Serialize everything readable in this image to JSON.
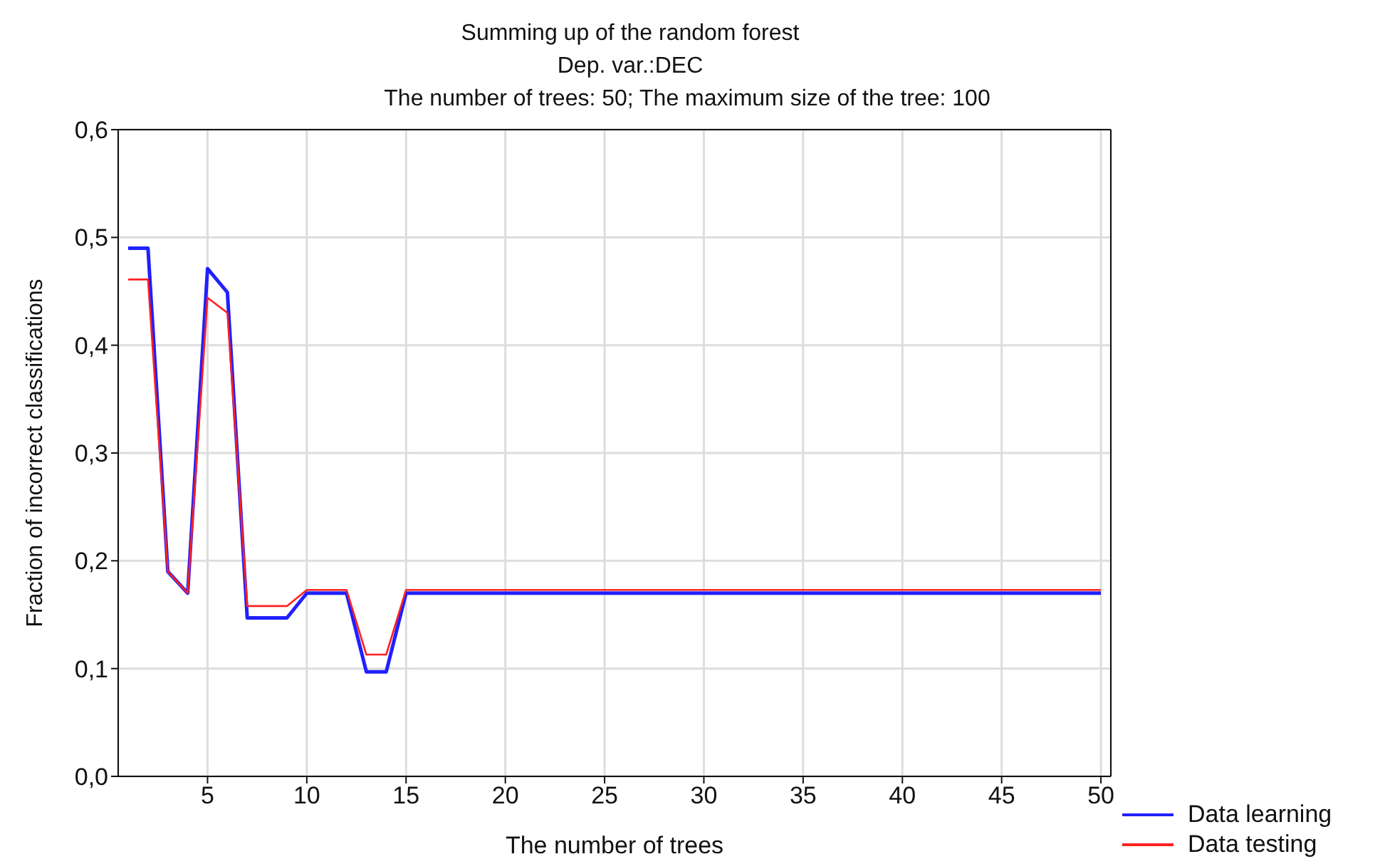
{
  "chart_data": {
    "type": "line",
    "title": "Summing up of the random forest",
    "subtitle": "Dep. var.:DEC\nThe number of trees: 50; The maximum size of the tree: 100",
    "xlabel": "The number of trees",
    "ylabel": "Fraction of incorrect classifications",
    "x": [
      1,
      2,
      3,
      4,
      5,
      6,
      7,
      8,
      9,
      10,
      11,
      12,
      13,
      14,
      15,
      16,
      17,
      18,
      19,
      20,
      21,
      22,
      23,
      24,
      25,
      26,
      27,
      28,
      29,
      30,
      31,
      32,
      33,
      34,
      35,
      36,
      37,
      38,
      39,
      40,
      41,
      42,
      43,
      44,
      45,
      46,
      47,
      48,
      49,
      50
    ],
    "series": [
      {
        "name": "Data learning",
        "color": "#2020ff",
        "values": [
          0.49,
          0.49,
          0.19,
          0.17,
          0.471,
          0.449,
          0.147,
          0.147,
          0.147,
          0.17,
          0.17,
          0.17,
          0.097,
          0.097,
          0.17,
          0.17,
          0.17,
          0.17,
          0.17,
          0.17,
          0.17,
          0.17,
          0.17,
          0.17,
          0.17,
          0.17,
          0.17,
          0.17,
          0.17,
          0.17,
          0.17,
          0.17,
          0.17,
          0.17,
          0.17,
          0.17,
          0.17,
          0.17,
          0.17,
          0.17,
          0.17,
          0.17,
          0.17,
          0.17,
          0.17,
          0.17,
          0.17,
          0.17,
          0.17,
          0.17
        ]
      },
      {
        "name": "Data testing",
        "color": "#ff2020",
        "values": [
          0.461,
          0.461,
          0.19,
          0.17,
          0.444,
          0.43,
          0.158,
          0.158,
          0.158,
          0.173,
          0.173,
          0.173,
          0.113,
          0.113,
          0.173,
          0.173,
          0.173,
          0.173,
          0.173,
          0.173,
          0.173,
          0.173,
          0.173,
          0.173,
          0.173,
          0.173,
          0.173,
          0.173,
          0.173,
          0.173,
          0.173,
          0.173,
          0.173,
          0.173,
          0.173,
          0.173,
          0.173,
          0.173,
          0.173,
          0.173,
          0.173,
          0.173,
          0.173,
          0.173,
          0.173,
          0.173,
          0.173,
          0.173,
          0.173,
          0.173
        ]
      }
    ],
    "xlim": [
      0.5,
      50.5
    ],
    "xticks": [
      5,
      10,
      15,
      20,
      25,
      30,
      35,
      40,
      45,
      50
    ],
    "ylim": [
      0,
      0.6
    ],
    "yticks": [
      {
        "value": 0,
        "label": "0,0"
      },
      {
        "value": 0.1,
        "label": "0,1"
      },
      {
        "value": 0.2,
        "label": "0,2"
      },
      {
        "value": 0.3,
        "label": "0,3"
      },
      {
        "value": 0.4,
        "label": "0,4"
      },
      {
        "value": 0.5,
        "label": "0,5"
      },
      {
        "value": 0.6,
        "label": "0,6"
      }
    ],
    "grid": true,
    "legend": "bottom right",
    "marker": "none",
    "line_style": "solid"
  }
}
